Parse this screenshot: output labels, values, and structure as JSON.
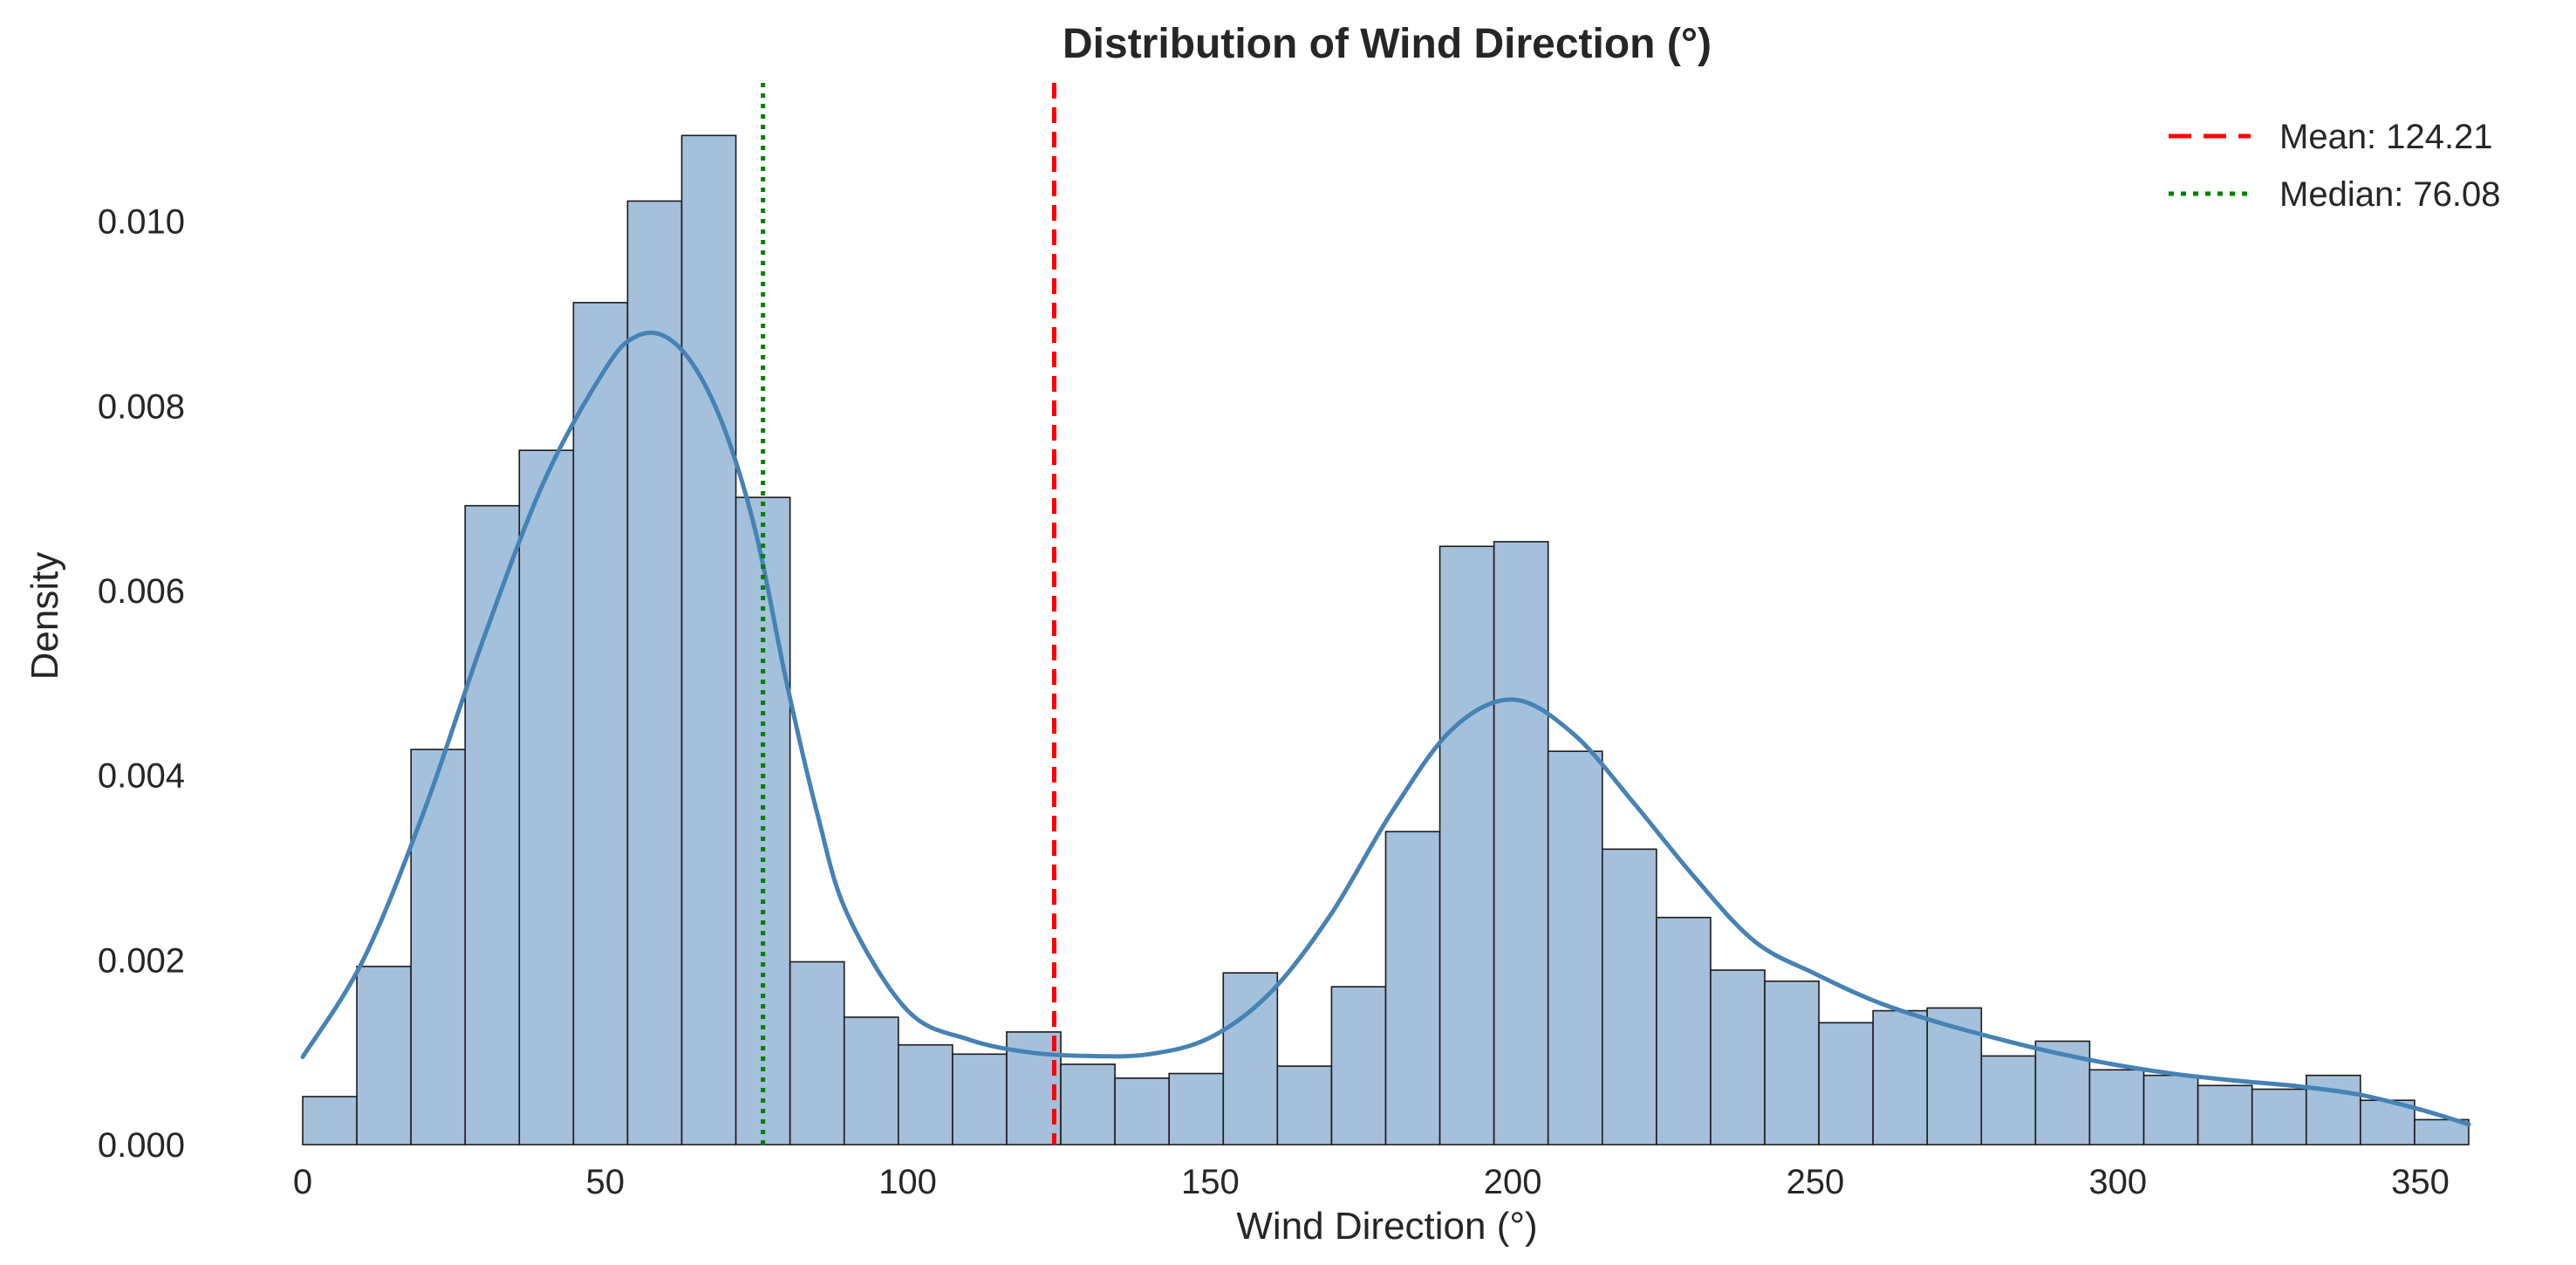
{
  "chart_data": {
    "type": "bar",
    "title": "Distribution of Wind Direction (°)",
    "xlabel": "Wind Direction (°)",
    "ylabel": "Density",
    "xlim": [
      0,
      358
    ],
    "ylim": [
      0,
      0.0115
    ],
    "x_ticks": [
      0,
      50,
      100,
      150,
      200,
      250,
      300,
      350
    ],
    "x_tick_labels": [
      "0",
      "50",
      "100",
      "150",
      "200",
      "250",
      "300",
      "350"
    ],
    "y_ticks": [
      0,
      0.002,
      0.004,
      0.006,
      0.008,
      0.01
    ],
    "y_tick_labels": [
      "0.000",
      "0.002",
      "0.004",
      "0.006",
      "0.008",
      "0.010"
    ],
    "grid": false,
    "legend_position": "top-right",
    "histogram": {
      "bin_width": 8.95,
      "bin_starts": [
        0,
        8.95,
        17.9,
        26.85,
        35.8,
        44.75,
        53.7,
        62.65,
        71.6,
        80.55,
        89.5,
        98.45,
        107.4,
        116.35,
        125.3,
        134.25,
        143.2,
        152.15,
        161.1,
        170.05,
        179.0,
        187.95,
        196.9,
        205.85,
        214.8,
        223.75,
        232.7,
        241.65,
        250.6,
        259.55,
        268.5,
        277.45,
        286.4,
        295.35,
        304.3,
        313.25,
        322.2,
        331.15,
        340.1,
        349.05
      ],
      "densities": [
        0.00052,
        0.00193,
        0.00428,
        0.00692,
        0.00752,
        0.00912,
        0.01022,
        0.01093,
        0.00701,
        0.00198,
        0.00138,
        0.00108,
        0.00098,
        0.00122,
        0.00087,
        0.00072,
        0.00077,
        0.00186,
        0.00085,
        0.00171,
        0.00339,
        0.00648,
        0.00653,
        0.00426,
        0.0032,
        0.00246,
        0.00189,
        0.00177,
        0.00132,
        0.00145,
        0.00148,
        0.00096,
        0.00112,
        0.00081,
        0.00075,
        0.00064,
        0.0006,
        0.00075,
        0.00048,
        0.00027
      ],
      "fill_color": "#a4c0db",
      "edge_color": "#1a1a1a"
    },
    "kde": {
      "color": "#4682b4",
      "x": [
        0,
        10,
        20,
        30,
        40,
        50,
        55,
        60,
        65,
        70,
        75,
        80,
        85,
        90,
        100,
        110,
        120,
        130,
        140,
        150,
        160,
        170,
        180,
        190,
        200,
        210,
        220,
        230,
        240,
        250,
        260,
        270,
        280,
        290,
        300,
        310,
        320,
        330,
        340,
        350,
        358
      ],
      "y": [
        0.00095,
        0.002,
        0.0036,
        0.0055,
        0.0072,
        0.0084,
        0.00875,
        0.00875,
        0.0084,
        0.0077,
        0.0066,
        0.005,
        0.0036,
        0.0025,
        0.00145,
        0.00114,
        0.001,
        0.00096,
        0.00098,
        0.00116,
        0.00165,
        0.0025,
        0.0036,
        0.0045,
        0.00482,
        0.00445,
        0.0037,
        0.0029,
        0.0022,
        0.00185,
        0.00155,
        0.00133,
        0.00115,
        0.00099,
        0.00086,
        0.00076,
        0.00069,
        0.00063,
        0.00054,
        0.00038,
        0.00022
      ]
    },
    "reference_lines": [
      {
        "name": "Mean: 124.21",
        "value": 124.21,
        "color": "#ff0000",
        "style": "dashed"
      },
      {
        "name": "Median: 76.08",
        "value": 76.08,
        "color": "#008000",
        "style": "dotted"
      }
    ]
  }
}
